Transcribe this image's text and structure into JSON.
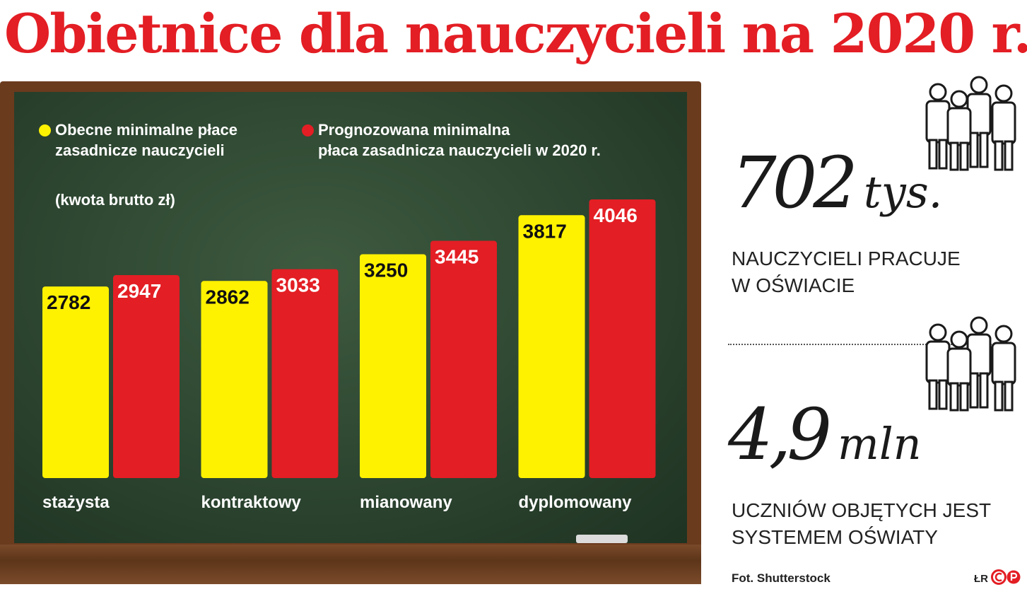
{
  "title": "Obietnice dla nauczycieli na 2020 r.",
  "legend": [
    {
      "text": "Obecne minimalne płace\nzasadnicze nauczycieli",
      "color": "#fff200"
    },
    {
      "text": "Prognozowana minimalna\npłaca zasadnicza nauczycieli w 2020 r.",
      "color": "#e31e24"
    }
  ],
  "unit_note": "(kwota brutto zł)",
  "chart_data": {
    "type": "bar",
    "categories": [
      "stażysta",
      "kontraktowy",
      "mianowany",
      "dyplomowany"
    ],
    "series": [
      {
        "name": "Obecne minimalne płace zasadnicze nauczycieli",
        "color": "#fff200",
        "values": [
          2782,
          2862,
          3250,
          3817
        ]
      },
      {
        "name": "Prognozowana minimalna płaca zasadnicza nauczycieli w 2020 r.",
        "color": "#e31e24",
        "values": [
          2947,
          3033,
          3445,
          4046
        ]
      }
    ],
    "title": "",
    "xlabel": "",
    "ylabel": "",
    "ylim": [
      0,
      4046
    ],
    "grid": false,
    "legend_position": "top"
  },
  "stats": [
    {
      "number": "702",
      "unit": "tys.",
      "caption": "NAUCZYCIELI PRACUJE\nW OŚWIACIE",
      "icon": "people-group-icon"
    },
    {
      "number": "4,9",
      "unit": "mln",
      "caption": "UCZNIÓW OBJĘTYCH JEST\nSYSTEMEM OŚWIATY",
      "icon": "people-group-icon"
    }
  ],
  "credit": "Fot. Shutterstock",
  "author_initials": "ŁR",
  "colors": {
    "accent": "#e31e24",
    "yellow": "#fff200",
    "board": "#2c4530",
    "frame": "#6b3b1e"
  }
}
